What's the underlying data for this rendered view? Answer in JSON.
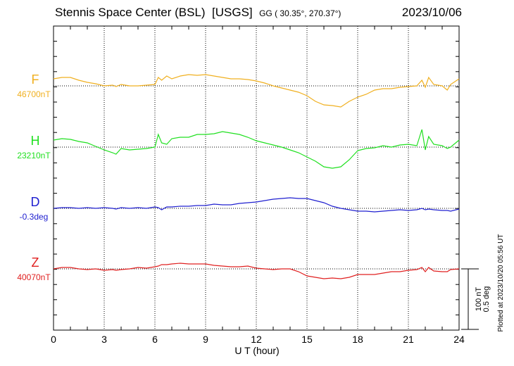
{
  "header": {
    "station": "Stennis Space Center (BSL)",
    "network": "[USGS]",
    "coords": "GG ( 30.35°, 270.37°)",
    "date": "2023/10/06"
  },
  "footer": {
    "plotted": "Plotted at 2023/10/20 05:56 UT"
  },
  "chart_data": {
    "type": "line",
    "xlabel": "U T (hour)",
    "xlim": [
      0,
      24
    ],
    "x_ticks": [
      0,
      3,
      6,
      9,
      12,
      15,
      18,
      21,
      24
    ],
    "grid": true,
    "scale_bar": {
      "nT": "100 nT",
      "deg": "0.5 deg"
    },
    "x": [
      0,
      0.5,
      1,
      1.5,
      2,
      2.5,
      3,
      3.5,
      3.7,
      4,
      4.5,
      5,
      5.5,
      6,
      6.2,
      6.4,
      6.7,
      7,
      7.5,
      8,
      8.5,
      9,
      9.5,
      10,
      10.5,
      11,
      11.5,
      12,
      12.5,
      13,
      13.5,
      14,
      14.5,
      15,
      15.5,
      16,
      16.5,
      17,
      17.5,
      18,
      18.5,
      19,
      19.5,
      20,
      20.5,
      21,
      21.5,
      21.8,
      22,
      22.2,
      22.5,
      23,
      23.3,
      23.5,
      24
    ],
    "series": [
      {
        "name": "F",
        "baseline_label": "46700nT",
        "color": "#f0b020",
        "values": [
          10,
          12,
          12,
          8,
          5,
          3,
          0,
          1,
          -1,
          2,
          0,
          0,
          1,
          2,
          12,
          8,
          14,
          10,
          14,
          16,
          15,
          16,
          14,
          12,
          10,
          10,
          9,
          7,
          4,
          0,
          -3,
          -6,
          -9,
          -14,
          -22,
          -27,
          -28,
          -30,
          -22,
          -16,
          -12,
          -6,
          -4,
          -4,
          -2,
          -1,
          0,
          8,
          -2,
          12,
          2,
          0,
          -6,
          2,
          10
        ]
      },
      {
        "name": "H",
        "baseline_label": "23210nT",
        "color": "#20e020",
        "values": [
          10,
          12,
          11,
          8,
          6,
          1,
          -4,
          -8,
          -10,
          -2,
          -4,
          -3,
          -2,
          0,
          18,
          6,
          4,
          12,
          14,
          14,
          18,
          18,
          19,
          22,
          20,
          18,
          14,
          9,
          6,
          3,
          0,
          -4,
          -8,
          -14,
          -20,
          -28,
          -30,
          -28,
          -18,
          -5,
          -2,
          -1,
          2,
          0,
          3,
          4,
          2,
          25,
          -4,
          15,
          4,
          2,
          -2,
          0,
          10
        ]
      },
      {
        "name": "D",
        "baseline_label": "-0.3deg",
        "color": "#2020d0",
        "values": [
          0,
          1,
          1,
          0,
          1,
          0,
          1,
          0,
          -1,
          1,
          0,
          1,
          0,
          2,
          1,
          -2,
          2,
          2,
          3,
          3,
          4,
          4,
          6,
          5,
          5,
          7,
          8,
          9,
          11,
          13,
          14,
          15,
          14,
          14,
          11,
          8,
          3,
          0,
          -2,
          -4,
          -4,
          -5,
          -4,
          -3,
          -2,
          -3,
          -2,
          0,
          -2,
          -1,
          -2,
          -3,
          -3,
          -4,
          -1
        ]
      },
      {
        "name": "Z",
        "baseline_label": "40070nT",
        "color": "#e02020",
        "values": [
          0,
          2,
          2,
          0,
          -1,
          0,
          -2,
          -1,
          -2,
          -1,
          0,
          2,
          1,
          3,
          4,
          6,
          6,
          7,
          8,
          7,
          7,
          7,
          5,
          4,
          3,
          3,
          4,
          1,
          0,
          -1,
          0,
          0,
          -4,
          -10,
          -12,
          -14,
          -13,
          -14,
          -12,
          -8,
          -8,
          -8,
          -6,
          -4,
          -4,
          -2,
          -1,
          2,
          -4,
          2,
          -3,
          -4,
          -4,
          -1,
          0
        ]
      }
    ]
  }
}
